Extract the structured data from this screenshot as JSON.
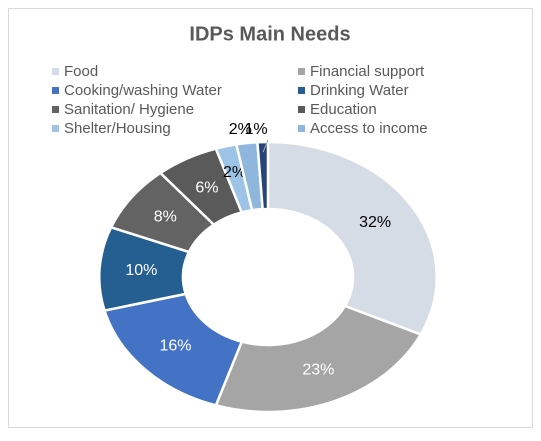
{
  "chart_data": {
    "type": "donut",
    "title": "IDPs Main Needs",
    "categories": [
      "Food",
      "Financial support",
      "Cooking/washing Water",
      "Drinking Water",
      "Sanitation/ Hygiene",
      "Education",
      "Shelter/Housing",
      "Access to income",
      null
    ],
    "values": [
      32,
      23,
      16,
      10,
      8,
      6,
      2,
      2,
      1
    ],
    "value_labels": [
      "32%",
      "23%",
      "16%",
      "10%",
      "8%",
      "6%",
      "2%",
      "2%",
      "1%"
    ],
    "colors": [
      "#d6dce5",
      "#a5a5a5",
      "#4472c4",
      "#255e91",
      "#636363",
      "#5a5a5a",
      "#9dc3e6",
      "#8fb6dc",
      "#264478"
    ],
    "legend": "top"
  }
}
